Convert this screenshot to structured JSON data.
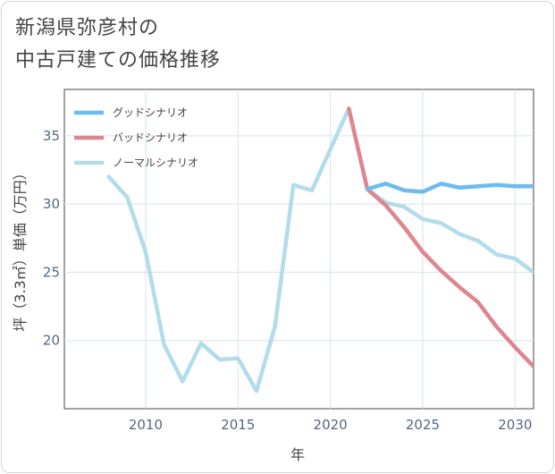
{
  "title": {
    "line1": "新潟県弥彦村の",
    "line2": "中古戸建ての価格推移"
  },
  "chart_data": {
    "type": "line",
    "xlabel": "年",
    "ylabel": "坪（3.3㎡）単価（万円）",
    "xlim": [
      2005.6,
      2031
    ],
    "ylim": [
      15.0,
      38.4
    ],
    "x_ticks": [
      2010,
      2015,
      2020,
      2025,
      2030
    ],
    "y_ticks": [
      20,
      25,
      30,
      35
    ],
    "grid": true,
    "legend_position": "top-left",
    "series": [
      {
        "name": "グッドシナリオ",
        "color": "#6cbcef",
        "x": [
          2022,
          2023,
          2024,
          2025,
          2026,
          2027,
          2028,
          2029,
          2030,
          2031
        ],
        "y": [
          31.1,
          31.5,
          31.0,
          30.9,
          31.5,
          31.2,
          31.3,
          31.4,
          31.3,
          31.3
        ]
      },
      {
        "name": "バッドシナリオ",
        "color": "#de8690",
        "x": [
          2021,
          2022,
          2023,
          2024,
          2025,
          2026,
          2027,
          2028,
          2029,
          2030,
          2031
        ],
        "y": [
          37.0,
          31.1,
          29.9,
          28.3,
          26.5,
          25.1,
          23.9,
          22.8,
          21.0,
          19.5,
          18.1
        ]
      },
      {
        "name": "ノーマルシナリオ",
        "color": "#b3dcea",
        "x": [
          2008,
          2009,
          2010,
          2011,
          2012,
          2013,
          2014,
          2015,
          2016,
          2017,
          2018,
          2019,
          2020,
          2021,
          2022,
          2023,
          2024,
          2025,
          2026,
          2027,
          2028,
          2029,
          2030,
          2031
        ],
        "y": [
          32.0,
          30.5,
          26.5,
          19.7,
          17.0,
          19.8,
          18.6,
          18.7,
          16.3,
          21.0,
          31.4,
          31.0,
          34.0,
          37.0,
          31.1,
          30.1,
          29.8,
          28.9,
          28.6,
          27.8,
          27.3,
          26.3,
          26.0,
          25.0
        ]
      }
    ]
  }
}
